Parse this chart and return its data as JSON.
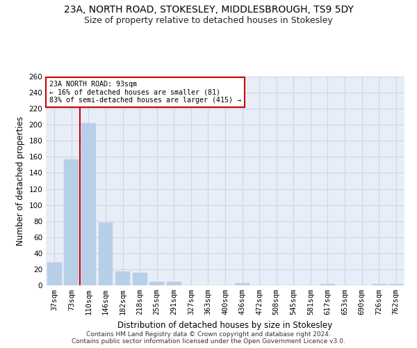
{
  "title1": "23A, NORTH ROAD, STOKESLEY, MIDDLESBROUGH, TS9 5DY",
  "title2": "Size of property relative to detached houses in Stokesley",
  "xlabel": "Distribution of detached houses by size in Stokesley",
  "ylabel": "Number of detached properties",
  "categories": [
    "37sqm",
    "73sqm",
    "110sqm",
    "146sqm",
    "182sqm",
    "218sqm",
    "255sqm",
    "291sqm",
    "327sqm",
    "363sqm",
    "400sqm",
    "436sqm",
    "472sqm",
    "508sqm",
    "545sqm",
    "581sqm",
    "617sqm",
    "653sqm",
    "690sqm",
    "726sqm",
    "762sqm"
  ],
  "values": [
    29,
    157,
    202,
    78,
    17,
    16,
    4,
    4,
    0,
    0,
    0,
    3,
    0,
    0,
    0,
    0,
    2,
    0,
    0,
    2,
    2
  ],
  "bar_color": "#b8cfe8",
  "bar_edgecolor": "#b8cfe8",
  "vline_x": 1.5,
  "vline_color": "#cc0000",
  "annotation_text": "23A NORTH ROAD: 93sqm\n← 16% of detached houses are smaller (81)\n83% of semi-detached houses are larger (415) →",
  "annotation_box_color": "#ffffff",
  "annotation_box_edgecolor": "#cc0000",
  "ylim": [
    0,
    260
  ],
  "yticks": [
    0,
    20,
    40,
    60,
    80,
    100,
    120,
    140,
    160,
    180,
    200,
    220,
    240,
    260
  ],
  "grid_color": "#ccd6e8",
  "background_color": "#e8eef8",
  "footer": "Contains HM Land Registry data © Crown copyright and database right 2024.\nContains public sector information licensed under the Open Government Licence v3.0.",
  "title_fontsize": 10,
  "subtitle_fontsize": 9,
  "axis_label_fontsize": 8.5,
  "tick_fontsize": 7.5,
  "footer_fontsize": 6.5
}
